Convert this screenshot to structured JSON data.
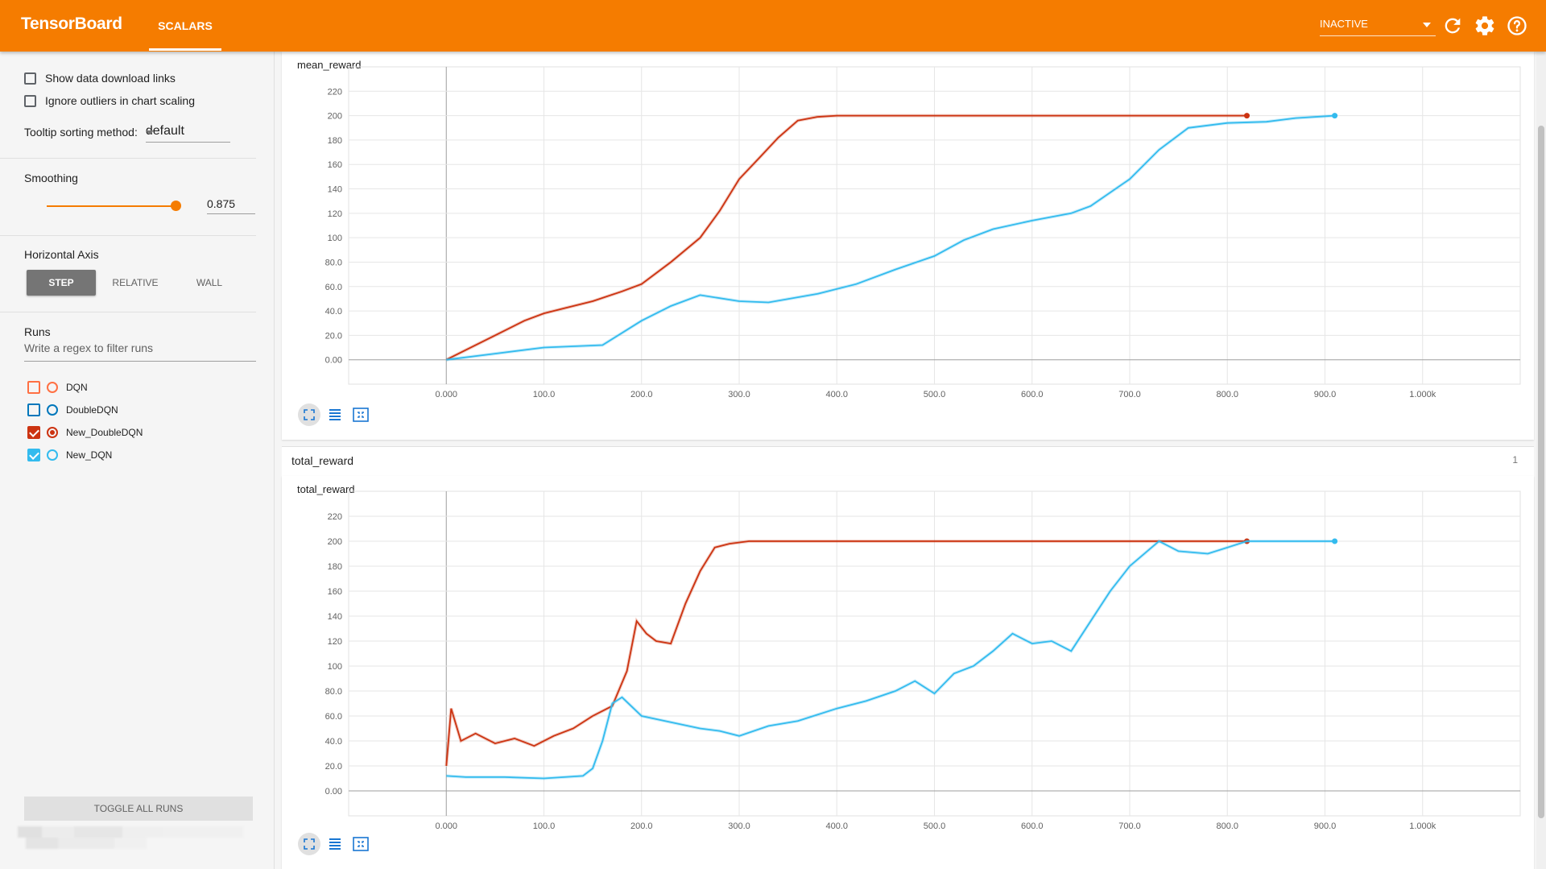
{
  "app": {
    "title": "TensorBoard",
    "tab": "SCALARS",
    "status_select": "INACTIVE",
    "icons": [
      "refresh-icon",
      "gear-icon",
      "help-icon"
    ],
    "accent_color": "#f57c00"
  },
  "sidebar": {
    "show_download_links": {
      "label": "Show data download links",
      "checked": false
    },
    "ignore_outliers": {
      "label": "Ignore outliers in chart scaling",
      "checked": false
    },
    "tooltip_sorting": {
      "label": "Tooltip sorting method:",
      "value": "default"
    },
    "smoothing": {
      "label": "Smoothing",
      "value": "0.875"
    },
    "horizontal_axis": {
      "label": "Horizontal Axis",
      "options": [
        "STEP",
        "RELATIVE",
        "WALL"
      ],
      "selected": "STEP"
    },
    "runs": {
      "label": "Runs",
      "filter_placeholder": "Write a regex to filter runs",
      "items": [
        {
          "name": "DQN",
          "color": "#ff7043",
          "checked": false
        },
        {
          "name": "DoubleDQN",
          "color": "#0077bb",
          "checked": false
        },
        {
          "name": "New_DoubleDQN",
          "color": "#cc3311",
          "checked": true
        },
        {
          "name": "New_DQN",
          "color": "#33bbee",
          "checked": true
        }
      ]
    },
    "toggle_all_label": "TOGGLE ALL RUNS"
  },
  "main": {
    "chart1_title": "mean_reward",
    "group_title": "total_reward",
    "group_count": "1",
    "chart2_title": "total_reward",
    "chart_buttons": [
      "expand-icon",
      "data-selection-icon",
      "fit-domain-icon"
    ]
  },
  "chart_data": [
    {
      "type": "line",
      "title": "mean_reward",
      "x_ticks": [
        "0.000",
        "100.0",
        "200.0",
        "300.0",
        "400.0",
        "500.0",
        "600.0",
        "700.0",
        "800.0",
        "900.0",
        "1.000k"
      ],
      "y_ticks": [
        "0.00",
        "20.0",
        "40.0",
        "60.0",
        "80.0",
        "100",
        "120",
        "140",
        "160",
        "180",
        "200",
        "220"
      ],
      "xlim": [
        -100,
        1100
      ],
      "ylim": [
        -20,
        240
      ],
      "grid": true,
      "series": [
        {
          "color": "#cc3311",
          "x": [
            0,
            20,
            50,
            80,
            100,
            120,
            150,
            180,
            200,
            230,
            260,
            280,
            300,
            320,
            340,
            360,
            380,
            400,
            500,
            600,
            700,
            820
          ],
          "y": [
            0,
            8,
            20,
            32,
            38,
            42,
            48,
            56,
            62,
            80,
            100,
            122,
            148,
            165,
            182,
            196,
            199,
            200,
            200,
            200,
            200,
            200
          ]
        },
        {
          "color": "#33bbee",
          "x": [
            0,
            50,
            100,
            160,
            200,
            230,
            260,
            300,
            330,
            380,
            420,
            460,
            500,
            530,
            560,
            600,
            640,
            660,
            700,
            730,
            760,
            800,
            840,
            870,
            910
          ],
          "y": [
            0,
            5,
            10,
            12,
            32,
            44,
            53,
            48,
            47,
            54,
            62,
            74,
            85,
            98,
            107,
            114,
            120,
            126,
            148,
            172,
            190,
            194,
            195,
            198,
            200
          ]
        }
      ]
    },
    {
      "type": "line",
      "title": "total_reward",
      "x_ticks": [
        "0.000",
        "100.0",
        "200.0",
        "300.0",
        "400.0",
        "500.0",
        "600.0",
        "700.0",
        "800.0",
        "900.0",
        "1.000k"
      ],
      "y_ticks": [
        "0.00",
        "20.0",
        "40.0",
        "60.0",
        "80.0",
        "100",
        "120",
        "140",
        "160",
        "180",
        "200",
        "220"
      ],
      "xlim": [
        -100,
        1100
      ],
      "ylim": [
        -20,
        240
      ],
      "grid": true,
      "series": [
        {
          "color": "#cc3311",
          "x": [
            0,
            5,
            15,
            30,
            50,
            70,
            90,
            110,
            130,
            150,
            170,
            185,
            195,
            205,
            215,
            230,
            245,
            260,
            275,
            290,
            310,
            330,
            400,
            600,
            820
          ],
          "y": [
            20,
            66,
            40,
            46,
            38,
            42,
            36,
            44,
            50,
            60,
            68,
            96,
            136,
            126,
            120,
            118,
            150,
            176,
            195,
            198,
            200,
            200,
            200,
            200,
            200
          ]
        },
        {
          "color": "#33bbee",
          "x": [
            0,
            20,
            60,
            100,
            140,
            150,
            160,
            170,
            180,
            200,
            230,
            260,
            280,
            300,
            330,
            360,
            400,
            430,
            460,
            480,
            500,
            520,
            540,
            560,
            580,
            600,
            620,
            640,
            660,
            680,
            700,
            730,
            750,
            780,
            800,
            820,
            860,
            910
          ],
          "y": [
            12,
            11,
            11,
            10,
            12,
            18,
            40,
            70,
            75,
            60,
            55,
            50,
            48,
            44,
            52,
            56,
            66,
            72,
            80,
            88,
            78,
            94,
            100,
            112,
            126,
            118,
            120,
            112,
            136,
            160,
            180,
            200,
            192,
            190,
            195,
            200,
            200,
            200
          ]
        }
      ]
    }
  ]
}
